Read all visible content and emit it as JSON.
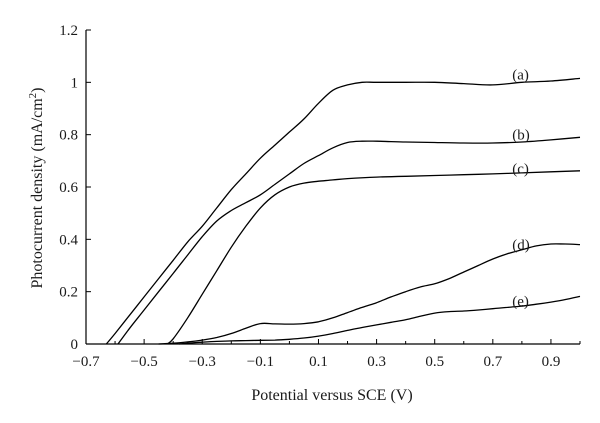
{
  "chart_data": {
    "type": "line",
    "title": "",
    "xlabel": "Potential versus SCE (V)",
    "ylabel": "Photocurrent density (mA/cm",
    "ylabel_superscript": "2",
    "ylabel_close": ")",
    "xlim": [
      -0.7,
      1.0
    ],
    "ylim": [
      0,
      1.2
    ],
    "x_ticks": [
      -0.7,
      -0.5,
      -0.3,
      -0.1,
      0.1,
      0.3,
      0.5,
      0.7,
      0.9
    ],
    "x_tick_labels": [
      "−0.7",
      "−0.5",
      "−0.3",
      "−0.1",
      "0.1",
      "0.3",
      "0.5",
      "0.7",
      "0.9"
    ],
    "y_ticks": [
      0,
      0.2,
      0.4,
      0.6,
      0.8,
      1,
      1.2
    ],
    "y_tick_labels": [
      "0",
      "0.2",
      "0.4",
      "0.6",
      "0.8",
      "1",
      "1.2"
    ],
    "grid": false,
    "series": [
      {
        "name": "(a)",
        "label_at": [
          0.76,
          1.03
        ],
        "x": [
          -0.63,
          -0.6,
          -0.55,
          -0.5,
          -0.45,
          -0.4,
          -0.35,
          -0.3,
          -0.25,
          -0.2,
          -0.15,
          -0.1,
          -0.05,
          0.0,
          0.05,
          0.1,
          0.15,
          0.2,
          0.25,
          0.3,
          0.4,
          0.5,
          0.6,
          0.7,
          0.8,
          0.9,
          1.0
        ],
        "y": [
          0.0,
          0.04,
          0.11,
          0.18,
          0.25,
          0.32,
          0.39,
          0.45,
          0.52,
          0.59,
          0.65,
          0.71,
          0.76,
          0.81,
          0.86,
          0.92,
          0.97,
          0.99,
          1.0,
          1.0,
          1.0,
          1.0,
          0.995,
          0.99,
          1.0,
          1.005,
          1.015
        ]
      },
      {
        "name": "(b)",
        "label_at": [
          0.76,
          0.8
        ],
        "x": [
          -0.59,
          -0.55,
          -0.5,
          -0.45,
          -0.4,
          -0.35,
          -0.3,
          -0.25,
          -0.2,
          -0.15,
          -0.1,
          -0.05,
          0.0,
          0.05,
          0.1,
          0.15,
          0.2,
          0.25,
          0.3,
          0.4,
          0.5,
          0.6,
          0.7,
          0.8,
          0.9,
          1.0
        ],
        "y": [
          0.0,
          0.06,
          0.13,
          0.2,
          0.27,
          0.34,
          0.41,
          0.47,
          0.51,
          0.54,
          0.57,
          0.61,
          0.65,
          0.69,
          0.72,
          0.75,
          0.77,
          0.775,
          0.775,
          0.772,
          0.77,
          0.768,
          0.768,
          0.772,
          0.78,
          0.79
        ]
      },
      {
        "name": "(c)",
        "label_at": [
          0.76,
          0.67
        ],
        "x": [
          -0.42,
          -0.4,
          -0.35,
          -0.3,
          -0.25,
          -0.2,
          -0.15,
          -0.1,
          -0.05,
          0.0,
          0.05,
          0.1,
          0.15,
          0.2,
          0.3,
          0.4,
          0.5,
          0.6,
          0.7,
          0.8,
          0.9,
          1.0
        ],
        "y": [
          0.0,
          0.02,
          0.1,
          0.19,
          0.28,
          0.37,
          0.45,
          0.52,
          0.57,
          0.6,
          0.615,
          0.622,
          0.627,
          0.632,
          0.638,
          0.641,
          0.644,
          0.647,
          0.65,
          0.654,
          0.658,
          0.662
        ]
      },
      {
        "name": "(d)",
        "label_at": [
          0.76,
          0.38
        ],
        "x": [
          -0.45,
          -0.4,
          -0.35,
          -0.3,
          -0.25,
          -0.2,
          -0.15,
          -0.1,
          -0.05,
          0.0,
          0.05,
          0.1,
          0.15,
          0.2,
          0.25,
          0.3,
          0.35,
          0.4,
          0.45,
          0.5,
          0.55,
          0.6,
          0.65,
          0.7,
          0.75,
          0.8,
          0.85,
          0.9,
          0.95,
          1.0
        ],
        "y": [
          0.0,
          0.003,
          0.008,
          0.015,
          0.025,
          0.04,
          0.06,
          0.078,
          0.077,
          0.076,
          0.078,
          0.085,
          0.1,
          0.12,
          0.14,
          0.158,
          0.18,
          0.2,
          0.218,
          0.23,
          0.25,
          0.275,
          0.3,
          0.325,
          0.345,
          0.36,
          0.375,
          0.382,
          0.382,
          0.38
        ]
      },
      {
        "name": "(e)",
        "label_at": [
          0.76,
          0.165
        ],
        "x": [
          -0.38,
          -0.35,
          -0.3,
          -0.25,
          -0.2,
          -0.15,
          -0.1,
          -0.05,
          0.0,
          0.05,
          0.1,
          0.15,
          0.2,
          0.25,
          0.3,
          0.35,
          0.4,
          0.45,
          0.5,
          0.55,
          0.6,
          0.65,
          0.7,
          0.75,
          0.8,
          0.85,
          0.9,
          0.95,
          1.0
        ],
        "y": [
          0.0,
          0.003,
          0.007,
          0.01,
          0.012,
          0.013,
          0.014,
          0.015,
          0.018,
          0.023,
          0.03,
          0.04,
          0.052,
          0.063,
          0.073,
          0.083,
          0.093,
          0.106,
          0.118,
          0.124,
          0.126,
          0.13,
          0.135,
          0.14,
          0.145,
          0.152,
          0.16,
          0.17,
          0.182
        ]
      }
    ]
  }
}
